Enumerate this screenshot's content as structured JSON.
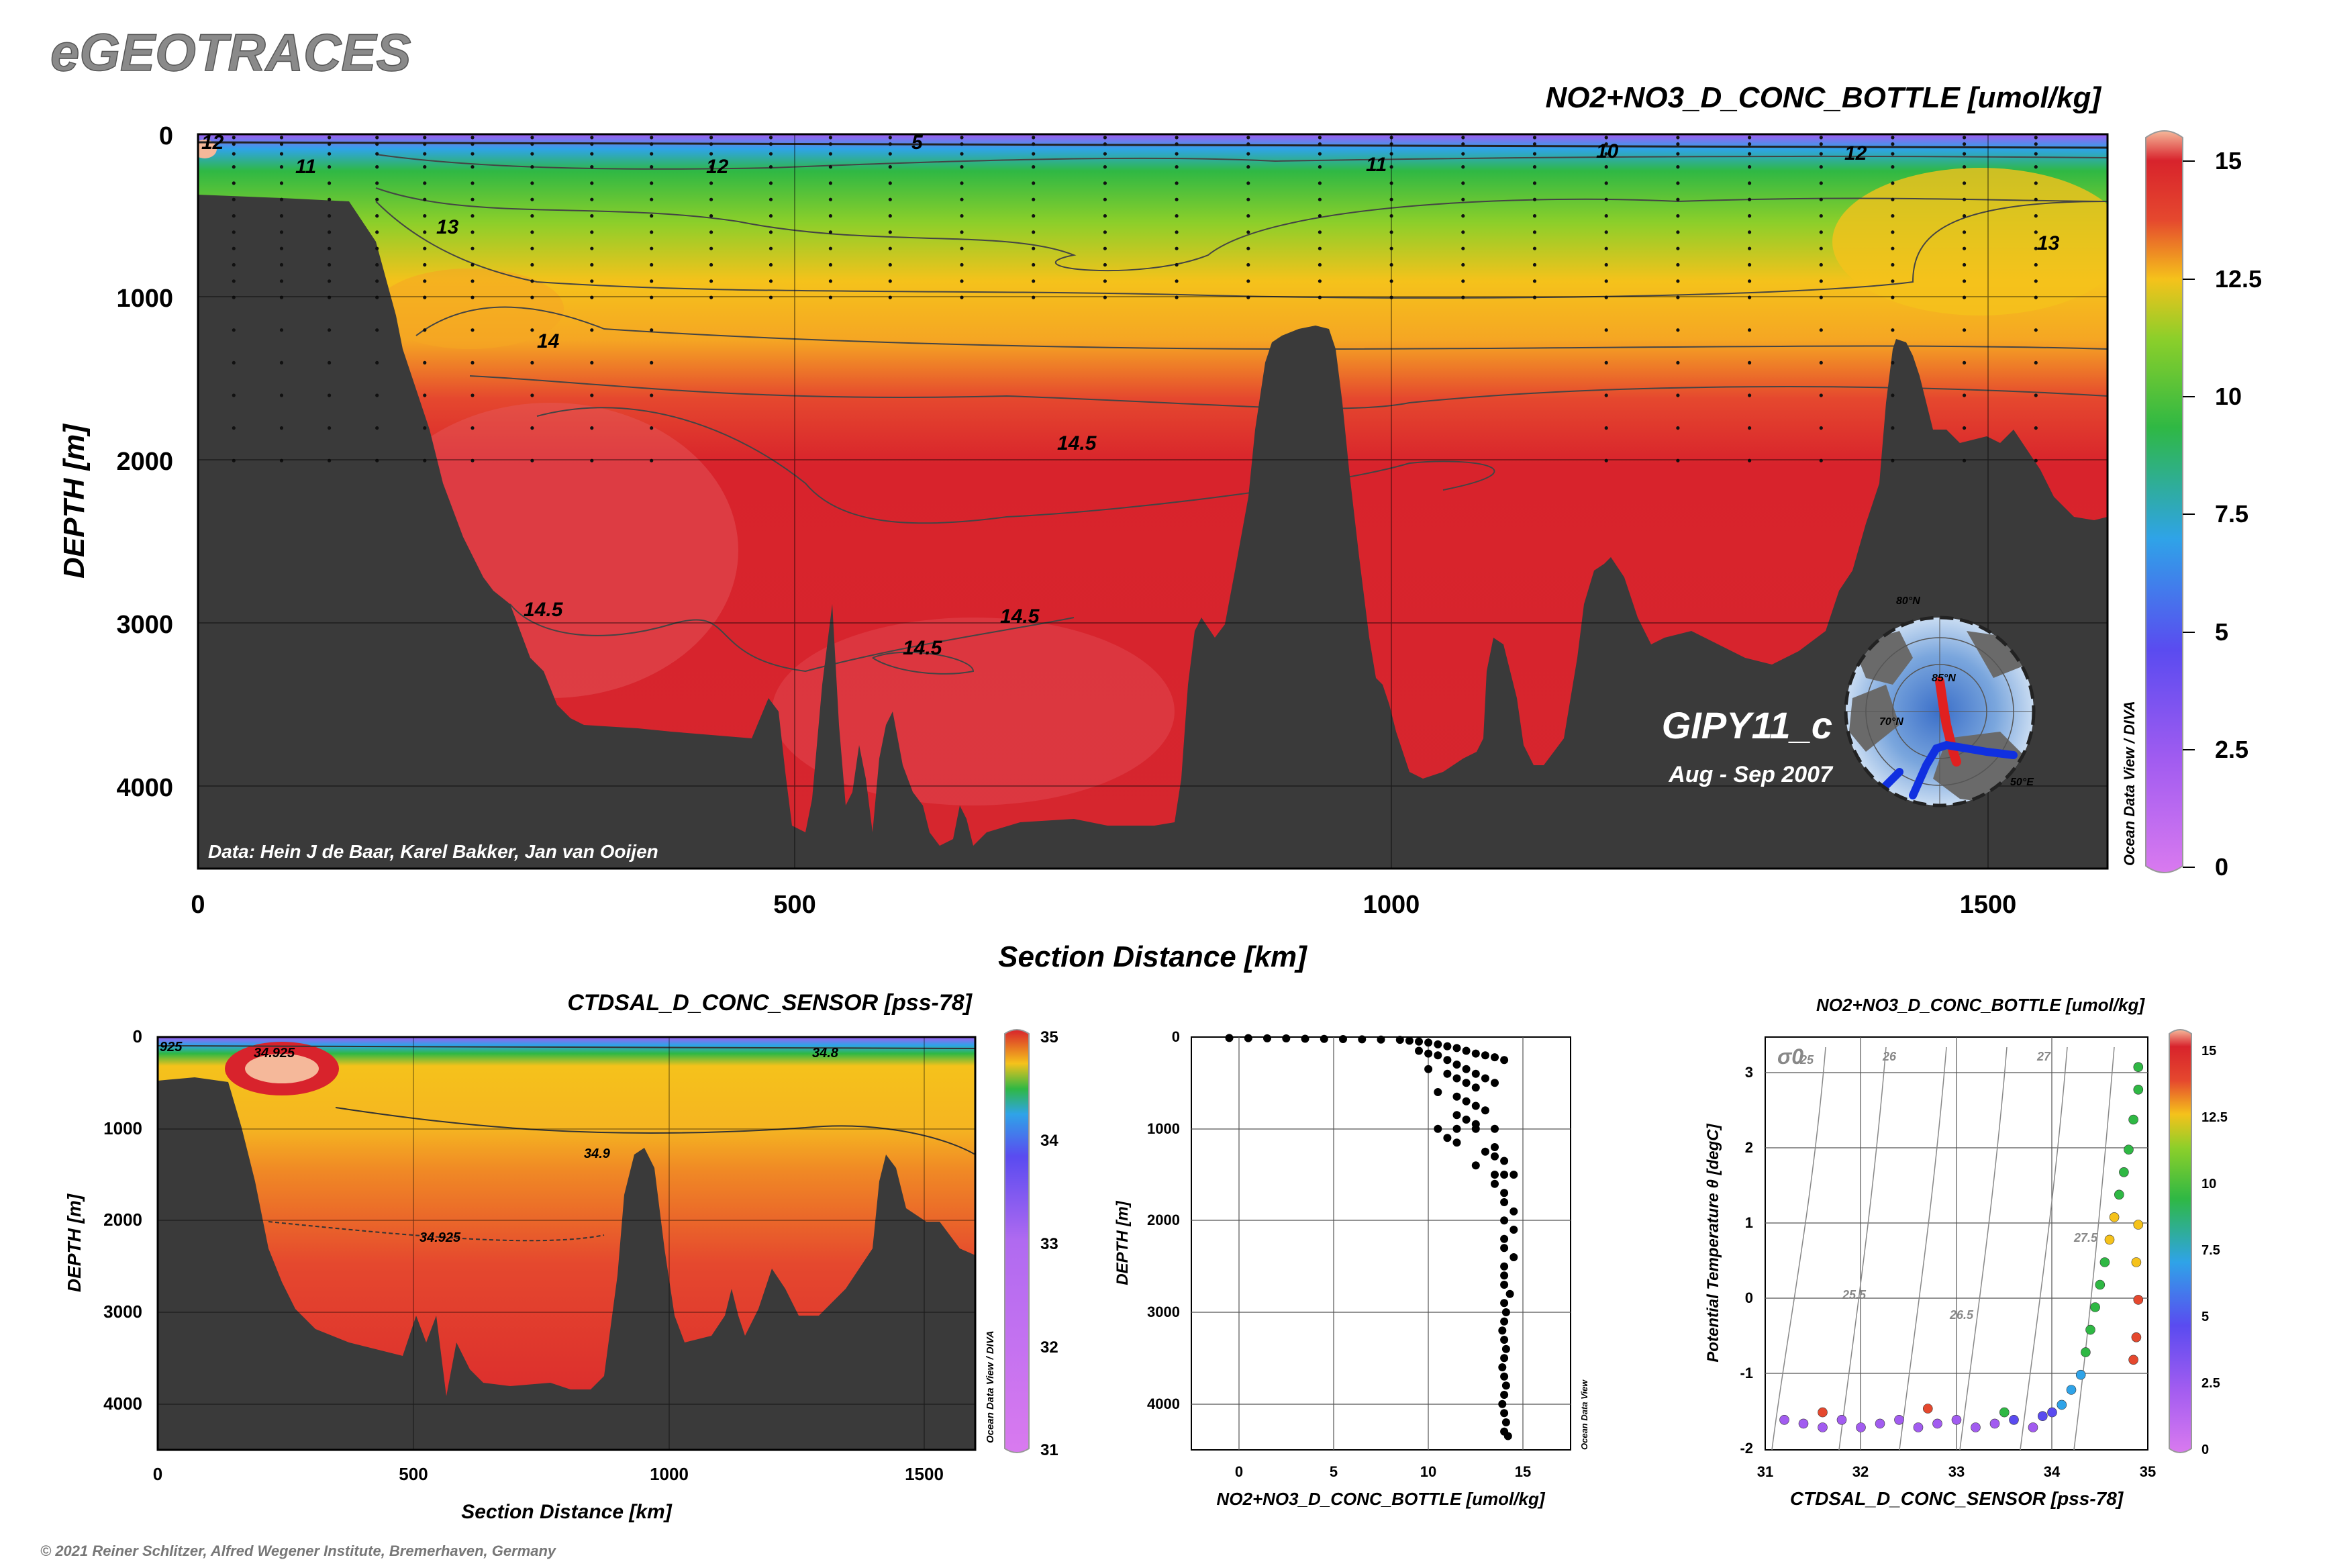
{
  "brand": "eGEOTRACES",
  "copyright": "© 2021 Reiner Schlitzer, Alfred Wegener Institute, Bremerhaven, Germany",
  "main_section": {
    "title": "NO2+NO3_D_CONC_BOTTLE [umol/kg]",
    "ylabel": "DEPTH [m]",
    "xlabel": "Section Distance [km]",
    "xticks": [
      "0",
      "500",
      "1000",
      "1500"
    ],
    "yticks": [
      "0",
      "1000",
      "2000",
      "3000",
      "4000"
    ],
    "colorbar_ticks": [
      "15",
      "12.5",
      "10",
      "7.5",
      "5",
      "2.5",
      "0"
    ],
    "cruise": "GIPY11_c",
    "period": "Aug - Sep 2007",
    "data_credit": "Data: Hein J de Baar, Karel Bakker, Jan van Ooijen",
    "odv_credit": "Ocean Data View / DIVA",
    "contour_labels": [
      "12",
      "11",
      "12",
      "5",
      "11",
      "10",
      "12",
      "13",
      "13",
      "14",
      "14.5",
      "14.5",
      "14.5",
      "14.5"
    ]
  },
  "map_inset": {
    "labels": [
      "85°N",
      "80°N",
      "70°N",
      "50°E"
    ]
  },
  "salinity_section": {
    "title": "CTDSAL_D_CONC_SENSOR [pss-78]",
    "ylabel": "DEPTH [m]",
    "xlabel": "Section Distance [km]",
    "xticks": [
      "0",
      "500",
      "1000",
      "1500"
    ],
    "yticks": [
      "0",
      "1000",
      "2000",
      "3000",
      "4000"
    ],
    "colorbar_ticks": [
      "35",
      "34",
      "33",
      "32",
      "31"
    ],
    "contour_labels": [
      "925",
      "34.925",
      "34.8",
      "34.9",
      "34.925"
    ],
    "odv_credit": "Ocean Data View / DIVA"
  },
  "profile_plot": {
    "xlabel": "NO2+NO3_D_CONC_BOTTLE [umol/kg]",
    "ylabel": "DEPTH [m]",
    "xticks": [
      "0",
      "5",
      "10",
      "15"
    ],
    "yticks": [
      "0",
      "1000",
      "2000",
      "3000",
      "4000"
    ],
    "odv_credit": "Ocean Data View"
  },
  "ts_plot": {
    "title": "NO2+NO3_D_CONC_BOTTLE [umol/kg]",
    "xlabel": "CTDSAL_D_CONC_SENSOR [pss-78]",
    "ylabel": "Potential Temperature θ [degC]",
    "xticks": [
      "31",
      "32",
      "33",
      "34",
      "35"
    ],
    "yticks": [
      "3",
      "2",
      "1",
      "0",
      "-1",
      "-2"
    ],
    "colorbar_ticks": [
      "15",
      "12.5",
      "10",
      "7.5",
      "5",
      "2.5",
      "0"
    ],
    "sigma_symbol": "σ0",
    "isopycnal_labels": [
      "25",
      "26",
      "27",
      "27.5",
      "25.5",
      "26.5"
    ]
  },
  "colors": {
    "bathymetry": "#3a3a3a",
    "high": "#d8232c",
    "mid": "#f5c21b",
    "low": "#2fb844",
    "surface": "#a25cf0"
  },
  "chart_data": [
    {
      "type": "heatmap",
      "name_ref": "main_section",
      "title": "NO2+NO3_D_CONC_BOTTLE [umol/kg]",
      "xlabel": "Section Distance [km]",
      "ylabel": "DEPTH [m]",
      "xlim": [
        0,
        1600
      ],
      "ylim": [
        4500,
        0
      ],
      "zlim": [
        0,
        15
      ],
      "colorscale": [
        "#d97aef",
        "#a25cf0",
        "#5a4bf0",
        "#2fa3e8",
        "#2fc8a5",
        "#2fb844",
        "#8ccf2a",
        "#f5c21b",
        "#f5a623",
        "#e5482e",
        "#d8232c",
        "#f5b89a"
      ]
    },
    {
      "type": "heatmap",
      "name_ref": "salinity_section",
      "title": "CTDSAL_D_CONC_SENSOR [pss-78]",
      "xlabel": "Section Distance [km]",
      "ylabel": "DEPTH [m]",
      "xlim": [
        0,
        1600
      ],
      "ylim": [
        4500,
        0
      ],
      "zlim": [
        31,
        35
      ]
    },
    {
      "type": "scatter",
      "name_ref": "profile_plot",
      "xlabel": "NO2+NO3_D_CONC_BOTTLE [umol/kg]",
      "ylabel": "DEPTH [m]",
      "xlim": [
        -2,
        18
      ],
      "ylim": [
        4500,
        0
      ],
      "points": [
        [
          0,
          10
        ],
        [
          1,
          12
        ],
        [
          2,
          14
        ],
        [
          3,
          15
        ],
        [
          4,
          18
        ],
        [
          5,
          20
        ],
        [
          6,
          22
        ],
        [
          7,
          25
        ],
        [
          8,
          28
        ],
        [
          9,
          30
        ],
        [
          9.5,
          40
        ],
        [
          10,
          50
        ],
        [
          10.5,
          60
        ],
        [
          11,
          80
        ],
        [
          11.5,
          100
        ],
        [
          12,
          120
        ],
        [
          12.5,
          150
        ],
        [
          13,
          180
        ],
        [
          13.5,
          200
        ],
        [
          14,
          220
        ],
        [
          14.5,
          250
        ],
        [
          10,
          150
        ],
        [
          10.5,
          180
        ],
        [
          11,
          200
        ],
        [
          11.5,
          250
        ],
        [
          12,
          300
        ],
        [
          12.5,
          350
        ],
        [
          13,
          400
        ],
        [
          13.5,
          450
        ],
        [
          14,
          500
        ],
        [
          10.5,
          350
        ],
        [
          11.5,
          400
        ],
        [
          12,
          450
        ],
        [
          12.5,
          500
        ],
        [
          13,
          550
        ],
        [
          11,
          600
        ],
        [
          12,
          650
        ],
        [
          12.5,
          700
        ],
        [
          13,
          750
        ],
        [
          13.5,
          800
        ],
        [
          12,
          850
        ],
        [
          12.5,
          900
        ],
        [
          13,
          950
        ],
        [
          11,
          1000
        ],
        [
          12,
          1000
        ],
        [
          13,
          1000
        ],
        [
          14,
          1000
        ],
        [
          11.5,
          1100
        ],
        [
          12,
          1150
        ],
        [
          14,
          1200
        ],
        [
          13.5,
          1250
        ],
        [
          14,
          1300
        ],
        [
          14.5,
          1350
        ],
        [
          13,
          1400
        ],
        [
          14,
          1500
        ],
        [
          14.5,
          1500
        ],
        [
          15,
          1500
        ],
        [
          14,
          1600
        ],
        [
          14.5,
          1700
        ],
        [
          14.5,
          1800
        ],
        [
          15,
          1900
        ],
        [
          14.5,
          2000
        ],
        [
          15,
          2100
        ],
        [
          14.5,
          2200
        ],
        [
          14.5,
          2300
        ],
        [
          15,
          2400
        ],
        [
          14.5,
          2500
        ],
        [
          14.5,
          2600
        ],
        [
          14.5,
          2700
        ],
        [
          14.8,
          2800
        ],
        [
          14.5,
          2900
        ],
        [
          14.6,
          3000
        ],
        [
          14.5,
          3100
        ],
        [
          14.4,
          3200
        ],
        [
          14.5,
          3300
        ],
        [
          14.6,
          3400
        ],
        [
          14.5,
          3500
        ],
        [
          14.4,
          3600
        ],
        [
          14.5,
          3700
        ],
        [
          14.6,
          3800
        ],
        [
          14.5,
          3900
        ],
        [
          14.4,
          4000
        ],
        [
          14.5,
          4100
        ],
        [
          14.6,
          4200
        ],
        [
          14.5,
          4300
        ],
        [
          14.7,
          4350
        ]
      ]
    },
    {
      "type": "scatter",
      "name_ref": "ts_plot",
      "title": "NO2+NO3_D_CONC_BOTTLE [umol/kg]",
      "xlabel": "CTDSAL_D_CONC_SENSOR [pss-78]",
      "ylabel": "Potential Temperature θ [degC]",
      "xlim": [
        31,
        35
      ],
      "ylim": [
        -2,
        3.5
      ],
      "zlim": [
        0,
        15
      ],
      "points": [
        [
          31.2,
          -1.6,
          4
        ],
        [
          31.4,
          -1.65,
          3.5
        ],
        [
          31.6,
          -1.7,
          3
        ],
        [
          31.8,
          -1.6,
          4
        ],
        [
          32.0,
          -1.7,
          3
        ],
        [
          32.2,
          -1.65,
          3.5
        ],
        [
          32.4,
          -1.6,
          4
        ],
        [
          32.6,
          -1.7,
          3
        ],
        [
          32.8,
          -1.65,
          3.5
        ],
        [
          33.0,
          -1.6,
          4
        ],
        [
          33.2,
          -1.7,
          3
        ],
        [
          33.4,
          -1.65,
          3.5
        ],
        [
          33.6,
          -1.6,
          5
        ],
        [
          33.8,
          -1.7,
          4
        ],
        [
          33.9,
          -1.55,
          6
        ],
        [
          34.0,
          -1.5,
          7
        ],
        [
          34.1,
          -1.4,
          7.5
        ],
        [
          34.2,
          -1.2,
          8
        ],
        [
          34.3,
          -1.0,
          9
        ],
        [
          34.35,
          -0.7,
          10
        ],
        [
          34.4,
          -0.4,
          10.5
        ],
        [
          34.45,
          -0.1,
          11
        ],
        [
          34.5,
          0.2,
          11.5
        ],
        [
          34.55,
          0.5,
          12
        ],
        [
          34.6,
          0.8,
          12.5
        ],
        [
          34.65,
          1.1,
          13
        ],
        [
          34.7,
          1.4,
          12
        ],
        [
          34.75,
          1.7,
          11
        ],
        [
          34.8,
          2.0,
          10.5
        ],
        [
          34.85,
          2.4,
          11
        ],
        [
          34.9,
          2.8,
          11.5
        ],
        [
          34.9,
          3.1,
          11
        ],
        [
          34.85,
          -0.8,
          14.5
        ],
        [
          34.88,
          -0.5,
          14.3
        ],
        [
          34.9,
          0.0,
          14
        ],
        [
          34.88,
          0.5,
          13.5
        ],
        [
          34.9,
          1.0,
          13
        ],
        [
          31.6,
          -1.5,
          14
        ],
        [
          32.7,
          -1.45,
          14.5
        ],
        [
          33.5,
          -1.5,
          12
        ]
      ]
    }
  ]
}
